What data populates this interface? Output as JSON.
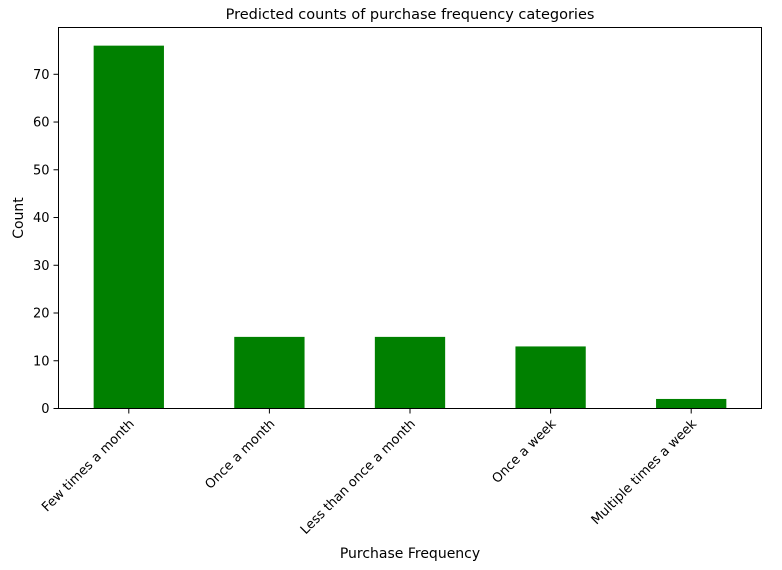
{
  "chart_data": {
    "type": "bar",
    "title": "Predicted counts of purchase frequency categories",
    "xlabel": "Purchase Frequency",
    "ylabel": "Count",
    "categories": [
      "Few times a month",
      "Once a month",
      "Less than once a month",
      "Once a week",
      "Multiple times a week"
    ],
    "values": [
      76,
      15,
      15,
      13,
      2
    ],
    "ylim": [
      0,
      79.8
    ],
    "yticks": [
      0,
      10,
      20,
      30,
      40,
      50,
      60,
      70
    ],
    "bar_color": "#008000",
    "grid": false,
    "legend": "none"
  }
}
